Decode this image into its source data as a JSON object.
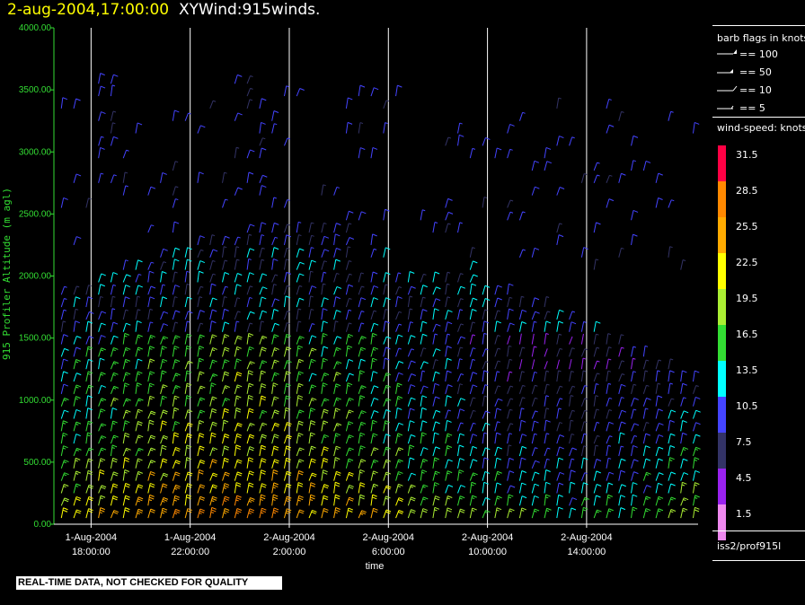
{
  "header": {
    "datetime": "2-aug-2004,17:00:00",
    "title": "XYWind:915winds."
  },
  "legend": {
    "barb_title": "barb flags in knots",
    "barbs": [
      {
        "label": "== 100",
        "kind": "pennant"
      },
      {
        "label": "== 50",
        "kind": "flag"
      },
      {
        "label": "== 10",
        "kind": "full"
      },
      {
        "label": "== 5",
        "kind": "half"
      }
    ],
    "speed_title": "wind-speed: knots",
    "colorbar": [
      {
        "label": "31.5",
        "color": "#ff0044"
      },
      {
        "label": "28.5",
        "color": "#ff8800"
      },
      {
        "label": "25.5",
        "color": "#ffaa00"
      },
      {
        "label": "22.5",
        "color": "#ffff00"
      },
      {
        "label": "19.5",
        "color": "#aaee33"
      },
      {
        "label": "16.5",
        "color": "#33dd33"
      },
      {
        "label": "13.5",
        "color": "#00ffff"
      },
      {
        "label": "10.5",
        "color": "#4444ff"
      },
      {
        "label": "7.5",
        "color": "#333366"
      },
      {
        "label": "4.5",
        "color": "#9922ee"
      },
      {
        "label": "1.5",
        "color": "#ee88ee"
      }
    ],
    "source": "iss2/prof915l"
  },
  "footer": {
    "note": "REAL-TIME DATA, NOT CHECKED FOR QUALITY"
  },
  "chart_data": {
    "type": "wind-barb time-height",
    "ylabel": "915 Profiler Altitude (m agl)",
    "xlabel": "time",
    "ylim": [
      0,
      4000
    ],
    "xlim_hours_from_1aug_1800": [
      -1.5,
      24.5
    ],
    "y_ticks": [
      "0.00",
      "500.00",
      "1000.00",
      "1500.00",
      "2000.00",
      "2500.00",
      "3000.00",
      "3500.00",
      "4000.00"
    ],
    "x_ticks": [
      {
        "date": "1-Aug-2004",
        "time": "18:00:00"
      },
      {
        "date": "1-Aug-2004",
        "time": "22:00:00"
      },
      {
        "date": "2-Aug-2004",
        "time": "2:00:00"
      },
      {
        "date": "2-Aug-2004",
        "time": "6:00:00"
      },
      {
        "date": "2-Aug-2004",
        "time": "10:00:00"
      },
      {
        "date": "2-Aug-2004",
        "time": "14:00:00"
      }
    ],
    "vertical_gridlines": true,
    "profile_count": 52,
    "height_levels_m": [
      50,
      150,
      250,
      350,
      450,
      550,
      650,
      750,
      850,
      950,
      1050,
      1150,
      1250,
      1350,
      1450,
      1550,
      1650,
      1750,
      1850,
      1950,
      2050,
      2150,
      2250,
      2350,
      2450,
      2550,
      2650,
      2750,
      2850,
      2950,
      3050,
      3150,
      3250,
      3350,
      3450,
      3550,
      3650,
      3750,
      3850,
      3950
    ]
  }
}
